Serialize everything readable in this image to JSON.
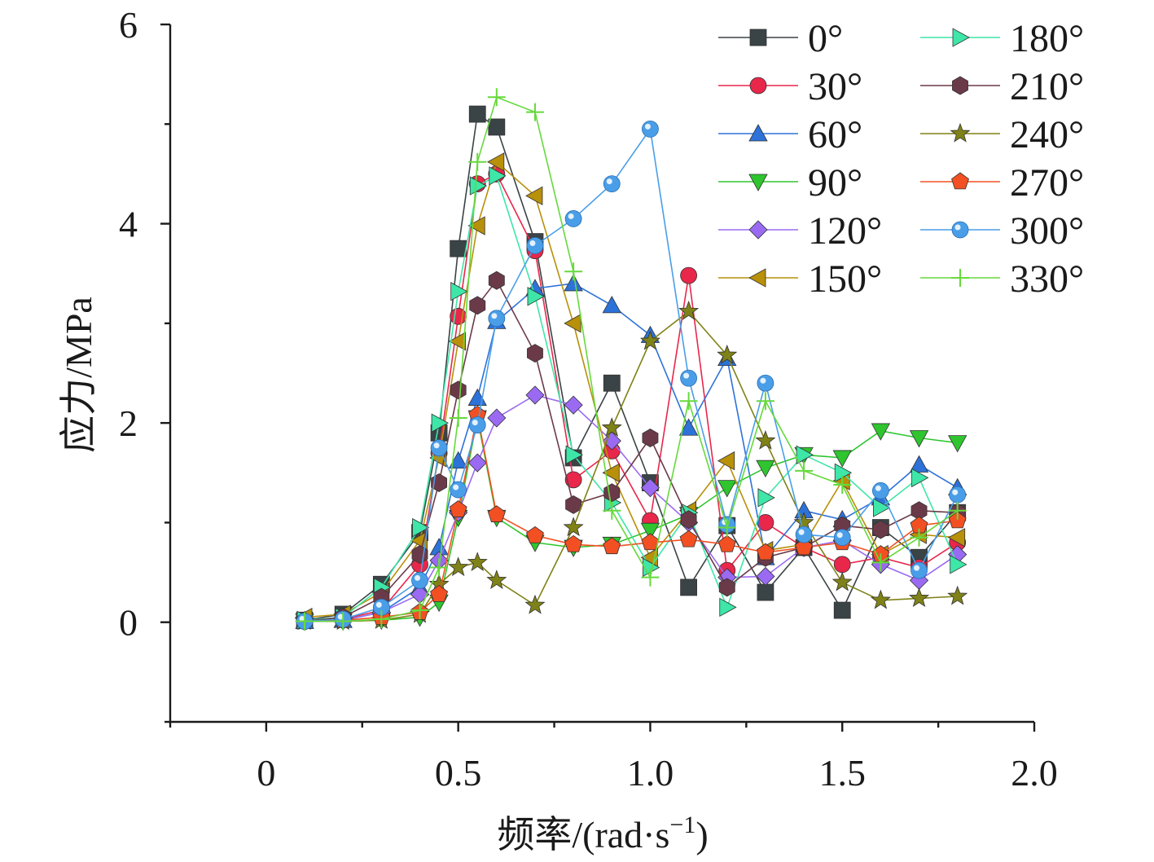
{
  "chart_data": {
    "type": "line",
    "title": "",
    "xlabel": "频率/(rad·s",
    "xlabel_sup": "−1",
    "xlabel_close": ")",
    "ylabel": "应力/MPa",
    "xlim": [
      -0.25,
      2.0
    ],
    "ylim": [
      -1.0,
      6.0
    ],
    "x_ticks": [
      0,
      0.5,
      1.0,
      1.5,
      2.0
    ],
    "x_tick_labels": [
      "0",
      "0.5",
      "1.0",
      "1.5",
      "2.0"
    ],
    "y_ticks": [
      0,
      2,
      4,
      6
    ],
    "y_tick_labels": [
      "0",
      "2",
      "4",
      "6"
    ],
    "grid": false,
    "legend_position": "top-right",
    "x": [
      0.1,
      0.2,
      0.3,
      0.4,
      0.45,
      0.5,
      0.55,
      0.6,
      0.7,
      0.8,
      0.9,
      1.0,
      1.1,
      1.2,
      1.3,
      1.4,
      1.5,
      1.6,
      1.7,
      1.8
    ],
    "series": [
      {
        "name": "0°",
        "color": "#3a4346",
        "marker": "square",
        "values": [
          0.02,
          0.08,
          0.38,
          0.9,
          1.9,
          3.75,
          5.1,
          4.97,
          3.82,
          1.65,
          2.4,
          1.4,
          0.35,
          0.97,
          0.3,
          0.75,
          0.12,
          0.95,
          0.65,
          1.1
        ]
      },
      {
        "name": "30°",
        "color": "#e8274b",
        "marker": "circle",
        "values": [
          0.01,
          0.03,
          0.12,
          0.58,
          1.7,
          3.07,
          4.4,
          4.5,
          3.73,
          1.43,
          1.72,
          1.02,
          3.48,
          0.52,
          1.0,
          0.75,
          0.58,
          0.65,
          0.55,
          0.8
        ]
      },
      {
        "name": "60°",
        "color": "#2d72d9",
        "marker": "triangle-up",
        "values": [
          0.01,
          0.02,
          0.1,
          0.35,
          0.75,
          1.62,
          2.25,
          3.02,
          3.35,
          3.4,
          3.18,
          2.88,
          1.95,
          2.65,
          0.65,
          1.12,
          1.03,
          1.25,
          1.58,
          1.35
        ]
      },
      {
        "name": "90°",
        "color": "#2ec52e",
        "marker": "triangle-down",
        "values": [
          0.01,
          0.01,
          0.02,
          0.05,
          0.2,
          1.05,
          2.05,
          1.05,
          0.8,
          0.75,
          0.78,
          0.92,
          1.08,
          1.35,
          1.55,
          1.68,
          1.65,
          1.92,
          1.85,
          1.8
        ]
      },
      {
        "name": "120°",
        "color": "#9a6bf2",
        "marker": "diamond",
        "values": [
          0.01,
          0.02,
          0.1,
          0.28,
          0.62,
          1.1,
          1.6,
          2.05,
          2.28,
          2.18,
          1.82,
          1.35,
          1.0,
          0.45,
          0.46,
          0.75,
          0.82,
          0.58,
          0.42,
          0.68
        ]
      },
      {
        "name": "150°",
        "color": "#b8900a",
        "marker": "triangle-left",
        "values": [
          0.05,
          0.08,
          0.3,
          0.82,
          1.65,
          2.82,
          3.98,
          4.62,
          4.28,
          3.0,
          1.5,
          0.65,
          1.12,
          1.62,
          0.72,
          0.78,
          1.42,
          0.68,
          0.88,
          0.85
        ]
      },
      {
        "name": "180°",
        "color": "#3ee6a8",
        "marker": "triangle-right",
        "values": [
          0.02,
          0.05,
          0.35,
          0.95,
          2.0,
          3.32,
          4.38,
          4.48,
          3.27,
          1.68,
          1.2,
          0.55,
          1.1,
          0.15,
          1.25,
          1.68,
          1.5,
          1.15,
          1.45,
          0.58
        ]
      },
      {
        "name": "210°",
        "color": "#6b3a49",
        "marker": "hexagon",
        "values": [
          0.01,
          0.05,
          0.25,
          0.68,
          1.4,
          2.33,
          3.18,
          3.43,
          2.7,
          1.18,
          1.3,
          1.85,
          1.03,
          0.35,
          0.65,
          0.75,
          0.97,
          0.93,
          1.12,
          1.1
        ]
      },
      {
        "name": "240°",
        "color": "#7f8216",
        "marker": "star",
        "values": [
          0.01,
          0.01,
          0.02,
          0.08,
          0.38,
          0.55,
          0.6,
          0.42,
          0.17,
          0.95,
          1.95,
          2.82,
          3.12,
          2.68,
          1.82,
          1.0,
          0.4,
          0.22,
          0.24,
          0.26
        ]
      },
      {
        "name": "270°",
        "color": "#f25022",
        "marker": "pentagon",
        "values": [
          0.01,
          0.02,
          0.05,
          0.1,
          0.28,
          1.13,
          2.08,
          1.08,
          0.87,
          0.78,
          0.76,
          0.8,
          0.83,
          0.78,
          0.7,
          0.75,
          0.8,
          0.68,
          0.97,
          1.02
        ]
      },
      {
        "name": "300°",
        "color": "#4a9ee8",
        "marker": "sphere",
        "values": [
          0.01,
          0.03,
          0.15,
          0.42,
          1.75,
          1.33,
          1.98,
          3.05,
          3.78,
          4.05,
          4.4,
          4.95,
          2.45,
          0.98,
          2.4,
          0.88,
          0.85,
          1.32,
          0.52,
          1.28
        ]
      },
      {
        "name": "330°",
        "color": "#66d93c",
        "marker": "plus",
        "values": [
          0.01,
          0.01,
          0.03,
          0.12,
          0.55,
          2.05,
          4.62,
          5.27,
          5.12,
          3.52,
          1.12,
          0.45,
          2.22,
          0.95,
          2.22,
          1.52,
          1.38,
          0.6,
          0.85,
          1.12
        ]
      }
    ]
  }
}
